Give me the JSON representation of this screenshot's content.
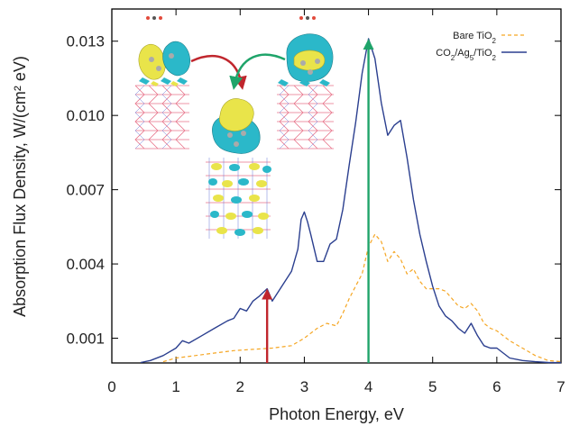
{
  "chart_data": {
    "type": "line",
    "xlabel": "Photon Energy, eV",
    "ylabel": "Absorption Flux Density, W/(cm² eV)",
    "xlim": [
      0,
      7
    ],
    "ylim": [
      0,
      0.0143
    ],
    "x_ticks": [
      0,
      1,
      2,
      3,
      4,
      5,
      6,
      7
    ],
    "x_tick_labels": [
      "0",
      "1",
      "2",
      "3",
      "4",
      "5",
      "6",
      "7"
    ],
    "y_ticks": [
      0.001,
      0.004,
      0.007,
      0.01,
      0.013
    ],
    "y_tick_labels": [
      "0.001",
      "0.004",
      "0.007",
      "0.010",
      "0.013"
    ],
    "grid": false,
    "legend_position": "top-right",
    "series": [
      {
        "name": "Bare TiO2",
        "name_base": "Bare TiO",
        "name_sub": "2",
        "color": "#f5a623",
        "style": "dashed",
        "x": [
          0.8,
          1.0,
          1.3,
          1.6,
          1.9,
          2.2,
          2.5,
          2.8,
          3.0,
          3.2,
          3.35,
          3.5,
          3.6,
          3.7,
          3.8,
          3.9,
          4.0,
          4.1,
          4.2,
          4.3,
          4.4,
          4.5,
          4.6,
          4.7,
          4.8,
          4.9,
          5.0,
          5.1,
          5.2,
          5.3,
          5.4,
          5.5,
          5.6,
          5.7,
          5.8,
          5.9,
          6.0,
          6.2,
          6.4,
          6.6,
          6.8,
          7.0
        ],
        "y": [
          5e-05,
          0.0002,
          0.0003,
          0.0004,
          0.0005,
          0.00055,
          0.0006,
          0.0007,
          0.001,
          0.0014,
          0.0016,
          0.0015,
          0.002,
          0.0026,
          0.0031,
          0.0036,
          0.0047,
          0.0052,
          0.0049,
          0.0041,
          0.0045,
          0.0042,
          0.0036,
          0.0038,
          0.0033,
          0.003,
          0.003,
          0.003,
          0.0029,
          0.0026,
          0.0023,
          0.0022,
          0.0024,
          0.0021,
          0.0016,
          0.0014,
          0.0013,
          0.0009,
          0.0006,
          0.0003,
          0.0001,
          5e-05
        ]
      },
      {
        "name": "CO2/Ag5/TiO2",
        "name_parts": [
          {
            "t": "CO",
            "sub": false
          },
          {
            "t": "2",
            "sub": true
          },
          {
            "t": "/Ag",
            "sub": false
          },
          {
            "t": "5",
            "sub": true
          },
          {
            "t": "/TiO",
            "sub": false
          },
          {
            "t": "2",
            "sub": true
          }
        ],
        "color": "#2b3f8f",
        "style": "solid",
        "x": [
          0.45,
          0.6,
          0.8,
          1.0,
          1.1,
          1.2,
          1.4,
          1.6,
          1.8,
          1.9,
          2.0,
          2.1,
          2.2,
          2.3,
          2.42,
          2.5,
          2.6,
          2.7,
          2.8,
          2.9,
          2.95,
          3.0,
          3.05,
          3.1,
          3.2,
          3.3,
          3.4,
          3.5,
          3.6,
          3.7,
          3.8,
          3.9,
          4.0,
          4.1,
          4.2,
          4.3,
          4.4,
          4.5,
          4.6,
          4.7,
          4.8,
          4.9,
          5.0,
          5.1,
          5.2,
          5.3,
          5.4,
          5.5,
          5.6,
          5.7,
          5.8,
          5.9,
          6.0,
          6.1,
          6.2,
          6.4,
          6.6,
          6.8,
          7.0
        ],
        "y": [
          2e-05,
          0.0001,
          0.0003,
          0.0006,
          0.0009,
          0.0008,
          0.0011,
          0.0014,
          0.0017,
          0.0018,
          0.0022,
          0.0021,
          0.0025,
          0.0027,
          0.003,
          0.0025,
          0.0029,
          0.0033,
          0.0037,
          0.0046,
          0.0058,
          0.0061,
          0.0057,
          0.0052,
          0.0041,
          0.0041,
          0.0048,
          0.005,
          0.0062,
          0.008,
          0.0097,
          0.0117,
          0.0131,
          0.0123,
          0.0105,
          0.0092,
          0.0096,
          0.0098,
          0.0083,
          0.0066,
          0.0052,
          0.0041,
          0.0031,
          0.0023,
          0.0019,
          0.0017,
          0.0014,
          0.0012,
          0.0016,
          0.0011,
          0.0007,
          0.0006,
          0.0006,
          0.0004,
          0.0002,
          0.0001,
          5e-05,
          2e-05,
          1e-05
        ]
      }
    ],
    "arrows": [
      {
        "x": 2.42,
        "y_from": 0,
        "y_to": 0.003,
        "color": "#c0262d"
      },
      {
        "x": 4.0,
        "y_from": 0,
        "y_to": 0.0131,
        "color": "#1fa46a"
      }
    ]
  },
  "colors": {
    "axis": "#000000",
    "isosurface_yellow": "#e9e44a",
    "isosurface_cyan": "#2bb8c9",
    "lattice_pink": "#e8748a",
    "lattice_blue": "#6b7ad8",
    "arrow_red": "#c0262d",
    "arrow_green": "#1fa46a"
  }
}
